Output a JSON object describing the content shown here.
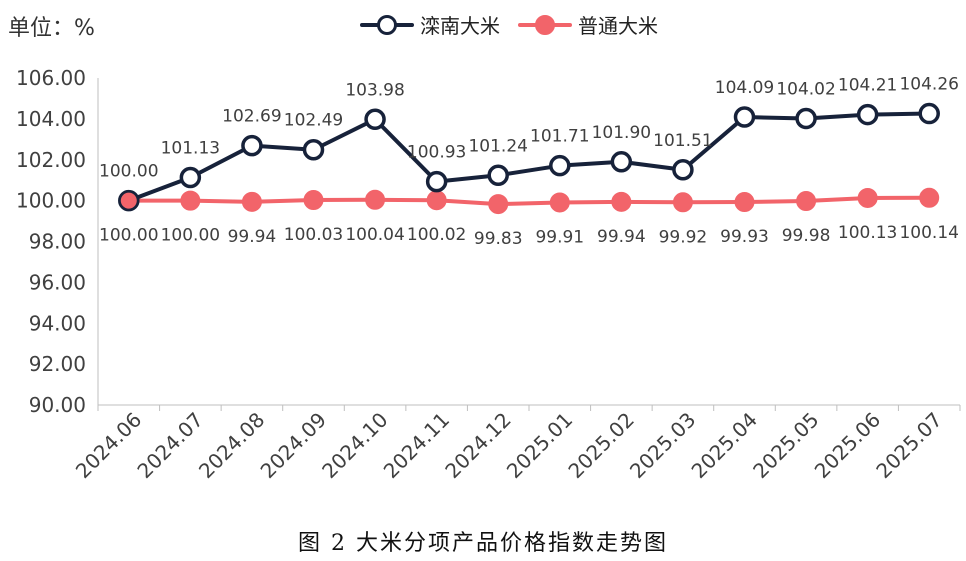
{
  "unit_label": "单位：%",
  "caption": "图 2  大米分项产品价格指数走势图",
  "colors": {
    "luannan": "#17223a",
    "putong": "#f2646a",
    "axis": "#bfbfbf",
    "text": "#404040"
  },
  "chart_data": {
    "type": "line",
    "categories": [
      "2024.06",
      "2024.07",
      "2024.08",
      "2024.09",
      "2024.10",
      "2024.11",
      "2024.12",
      "2025.01",
      "2025.02",
      "2025.03",
      "2025.04",
      "2025.05",
      "2025.06",
      "2025.07"
    ],
    "series": [
      {
        "name": "滦南大米",
        "values": [
          100.0,
          101.13,
          102.69,
          102.49,
          103.98,
          100.93,
          101.24,
          101.71,
          101.9,
          101.51,
          104.09,
          104.02,
          104.21,
          104.26
        ]
      },
      {
        "name": "普通大米",
        "values": [
          100.0,
          100.0,
          99.94,
          100.03,
          100.04,
          100.02,
          99.83,
          99.91,
          99.94,
          99.92,
          99.93,
          99.98,
          100.13,
          100.14
        ]
      }
    ],
    "ylim": [
      90,
      106
    ],
    "yticks": [
      "90.00",
      "92.00",
      "94.00",
      "96.00",
      "98.00",
      "100.00",
      "102.00",
      "104.00",
      "106.00"
    ],
    "data_labels": {
      "luannan": [
        "100.00",
        "101.13",
        "102.69",
        "102.49",
        "103.98",
        "100.93",
        "101.24",
        "101.71",
        "101.90",
        "101.51",
        "104.09",
        "104.02",
        "104.21",
        "104.26"
      ],
      "putong": [
        "100.00",
        "100.00",
        "99.94",
        "100.03",
        "100.04",
        "100.02",
        "99.83",
        "99.91",
        "99.94",
        "99.92",
        "99.93",
        "99.98",
        "100.13",
        "100.14"
      ]
    },
    "legend": "top-center",
    "grid": false
  }
}
